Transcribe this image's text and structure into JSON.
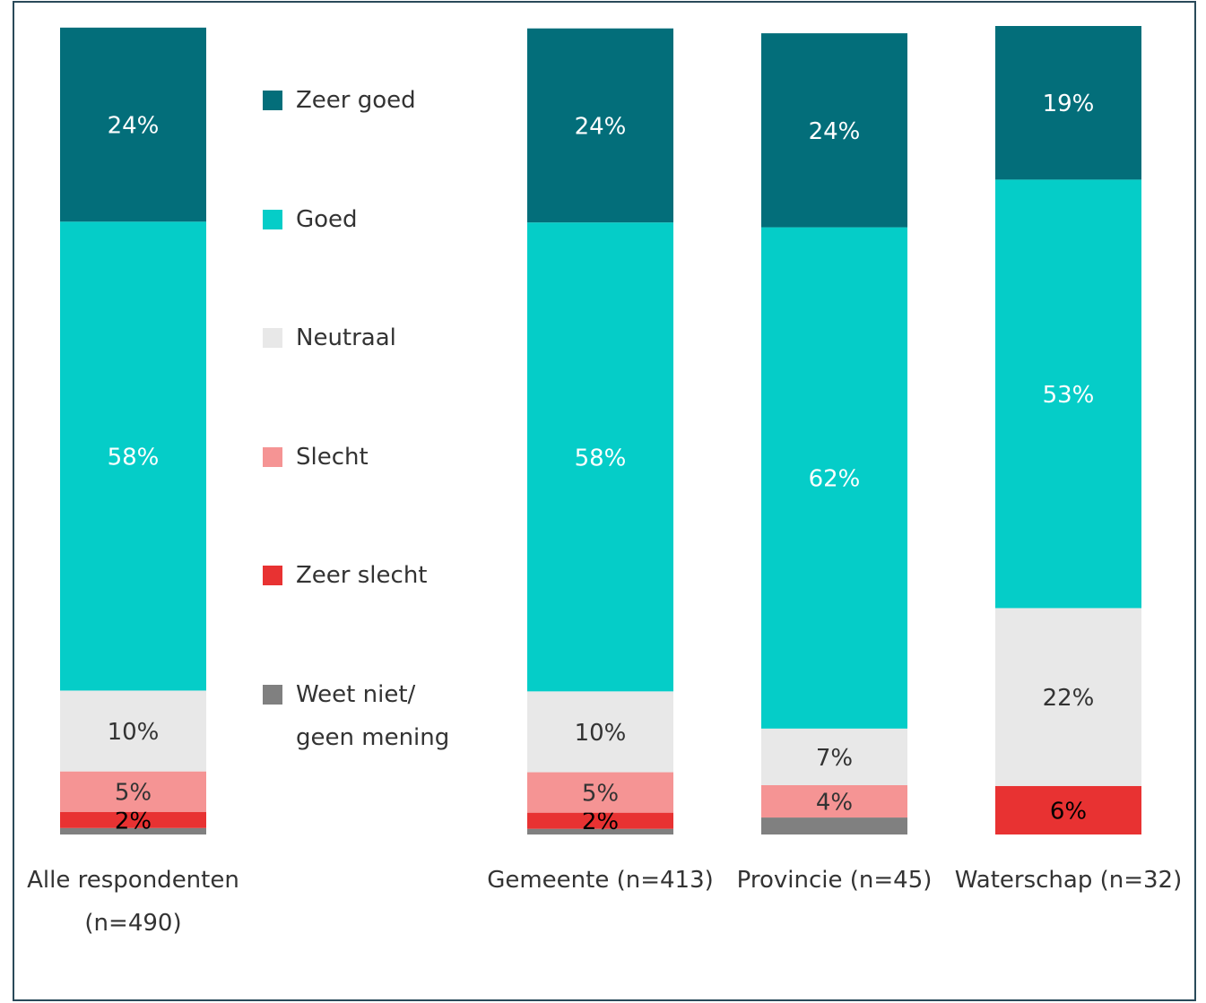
{
  "chart_data": {
    "type": "stacked_bar",
    "categories": [
      "Alle respondenten (n=490)",
      "Gemeente (n=413)",
      "Provincie (n=45)",
      "Waterschap (n=32)"
    ],
    "ylim": [
      0,
      100
    ],
    "series": [
      {
        "name": "Zeer goed",
        "color": "#036e7a",
        "values": [
          24,
          24,
          24,
          19
        ],
        "value_labels": [
          "24%",
          "24%",
          "24%",
          "19%"
        ]
      },
      {
        "name": "Goed",
        "color": "#05cdc8",
        "values": [
          58,
          58,
          62,
          53
        ],
        "value_labels": [
          "58%",
          "58%",
          "62%",
          "53%"
        ]
      },
      {
        "name": "Neutraal",
        "color": "#e8e8e8",
        "values": [
          10,
          10,
          7,
          22
        ],
        "value_labels": [
          "10%",
          "10%",
          "7%",
          "22%"
        ]
      },
      {
        "name": "Slecht",
        "color": "#f59494",
        "values": [
          5,
          5,
          4,
          0
        ],
        "value_labels": [
          "5%",
          "5%",
          "4%",
          null
        ]
      },
      {
        "name": "Zeer slecht",
        "color": "#e83232",
        "values": [
          2,
          2,
          0,
          6
        ],
        "value_labels": [
          "2%",
          "2%",
          null,
          "6%"
        ]
      },
      {
        "name": "Weet niet/ geen mening",
        "color": "#808080",
        "values": [
          0.8,
          0.7,
          2.1,
          0
        ],
        "value_labels": [
          null,
          null,
          null,
          null
        ]
      }
    ]
  }
}
